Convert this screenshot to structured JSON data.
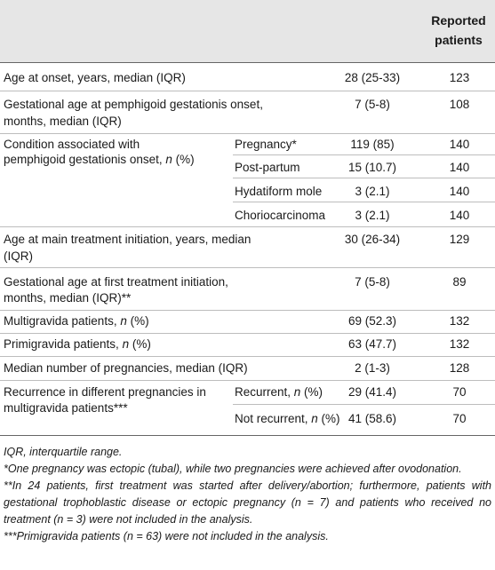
{
  "header": {
    "reported_line1": "Reported",
    "reported_line2": "patients"
  },
  "rows": {
    "age_onset": {
      "label": "Age at onset, years, median (IQR)",
      "value": "28 (25-33)",
      "n": "123"
    },
    "gest_onset": {
      "label1": "Gestational age at pemphigoid gestationis onset,",
      "label2": "months, median (IQR)",
      "value": "7 (5-8)",
      "n": "108"
    },
    "condition": {
      "label1": "Condition associated with",
      "label2a": "pemphigoid gestationis onset, ",
      "label2b": "n",
      "label2c": " (%)",
      "sub": [
        {
          "label": "Pregnancy*",
          "value": "119 (85)",
          "n": "140"
        },
        {
          "label": "Post-partum",
          "value": "15 (10.7)",
          "n": "140"
        },
        {
          "label": "Hydatiform mole",
          "value": "3 (2.1)",
          "n": "140"
        },
        {
          "label": "Choriocarcinoma",
          "value": "3 (2.1)",
          "n": "140"
        }
      ]
    },
    "age_treat": {
      "label1": "Age at main treatment initiation, years, median",
      "label2": "(IQR)",
      "value": "30 (26-34)",
      "n": "129"
    },
    "gest_treat": {
      "label1": "Gestational age at first treatment initiation,",
      "label2": "months, median (IQR)**",
      "value": "7 (5-8)",
      "n": "89"
    },
    "multi": {
      "label_a": "Multigravida patients, ",
      "label_b": "n",
      "label_c": " (%)",
      "value": "69 (52.3)",
      "n": "132"
    },
    "primi": {
      "label_a": "Primigravida patients, ",
      "label_b": "n",
      "label_c": " (%)",
      "value": "63 (47.7)",
      "n": "132"
    },
    "median_preg": {
      "label": "Median number of pregnancies, median (IQR)",
      "value": "2 (1-3)",
      "n": "128"
    },
    "recurrence": {
      "label1": "Recurrence in different pregnancies in",
      "label2": "multigravida patients***",
      "sub": [
        {
          "label_a": "Recurrent, ",
          "label_b": "n",
          "label_c": " (%)",
          "value": "29 (41.4)",
          "n": "70"
        },
        {
          "label_a": "Not recurrent, ",
          "label_b": "n",
          "label_c": " (%)",
          "value": "41 (58.6)",
          "n": "70"
        }
      ]
    }
  },
  "notes": [
    "IQR, interquartile range.",
    "*One pregnancy was ectopic (tubal), while two pregnancies were achieved after ovodonation.",
    "**In 24 patients, first treatment was started after delivery/abortion; furthermore, patients with gestational trophoblastic disease or ectopic pregnancy (n = 7) and patients who received no treatment (n = 3) were not included in the analysis.",
    "***Primigravida patients (n = 63) were not included in the analysis."
  ]
}
